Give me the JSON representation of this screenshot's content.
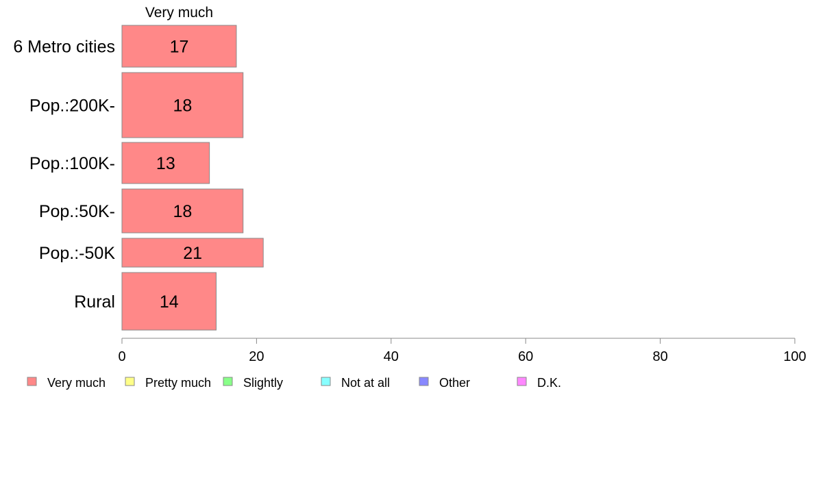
{
  "chart_data": {
    "type": "bar",
    "orientation": "horizontal",
    "stacked": true,
    "categories": [
      "6 Metro cities",
      "Pop.:200K-",
      "Pop.:100K-",
      "Pop.:50K-",
      "Pop.:-50K",
      "Rural"
    ],
    "series": [
      {
        "name": "Very much",
        "color": "#ff8888",
        "values": [
          17,
          18,
          13,
          18,
          21,
          14
        ]
      }
    ],
    "series_header": "Very much",
    "xlim": [
      0,
      100
    ],
    "xticks": [
      0,
      20,
      40,
      60,
      80,
      100
    ],
    "grid": false,
    "legend": {
      "placement": "bottom",
      "items": [
        {
          "name": "Very much",
          "color": "#ff8888"
        },
        {
          "name": "Pretty much",
          "color": "#ffff88"
        },
        {
          "name": "Slightly",
          "color": "#88ff88"
        },
        {
          "name": "Not at all",
          "color": "#88ffff"
        },
        {
          "name": "Other",
          "color": "#8888ff"
        },
        {
          "name": "D.K.",
          "color": "#ff88ff"
        }
      ]
    }
  }
}
